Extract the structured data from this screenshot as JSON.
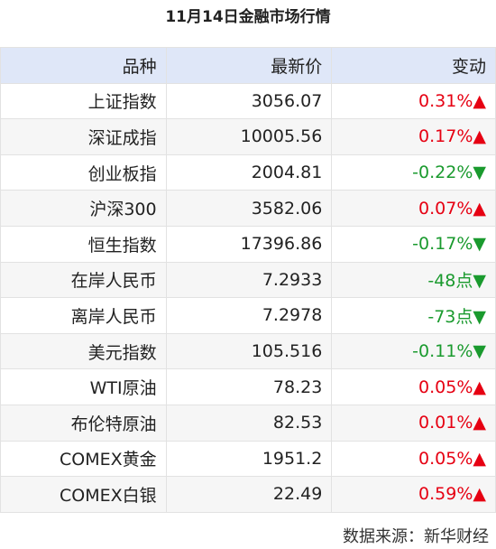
{
  "title": "11月14日金融市场行情",
  "table": {
    "header": [
      "品种",
      "最新价",
      "变动"
    ],
    "rows": [
      [
        "上证指数",
        "3056.07",
        "0.31%▲"
      ],
      [
        "深证成指",
        "10005.56",
        "0.17%▲"
      ],
      [
        "创业板指",
        "2004.81",
        "-0.22%▼"
      ],
      [
        "沪深300",
        "3582.06",
        "0.07%▲"
      ],
      [
        "恒生指数",
        "17396.86",
        "-0.17%▼"
      ],
      [
        "在岸人民币",
        "7.2933",
        "-48点▼"
      ],
      [
        "离岸人民币",
        "7.2978",
        "-73点▼"
      ],
      [
        "美元指数",
        "105.516",
        "-0.11%▼"
      ],
      [
        "WTI原油",
        "78.23",
        "0.05%▲"
      ],
      [
        "布伦特原油",
        "82.53",
        "0.01%▲"
      ],
      [
        "COMEX黄金",
        "1951.2",
        "0.05%▲"
      ],
      [
        "COMEX白银",
        "22.49",
        "0.59%▲"
      ]
    ]
  },
  "footer": "数据来源：新华财经"
}
